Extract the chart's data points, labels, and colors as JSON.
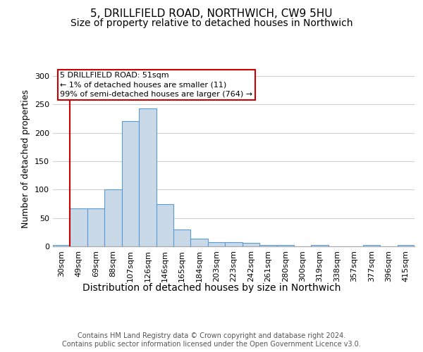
{
  "title1": "5, DRILLFIELD ROAD, NORTHWICH, CW9 5HU",
  "title2": "Size of property relative to detached houses in Northwich",
  "xlabel": "Distribution of detached houses by size in Northwich",
  "ylabel": "Number of detached properties",
  "footnote": "Contains HM Land Registry data © Crown copyright and database right 2024.\nContains public sector information licensed under the Open Government Licence v3.0.",
  "categories": [
    "30sqm",
    "49sqm",
    "69sqm",
    "88sqm",
    "107sqm",
    "126sqm",
    "146sqm",
    "165sqm",
    "184sqm",
    "203sqm",
    "223sqm",
    "242sqm",
    "261sqm",
    "280sqm",
    "300sqm",
    "319sqm",
    "338sqm",
    "357sqm",
    "377sqm",
    "396sqm",
    "415sqm"
  ],
  "values": [
    2,
    67,
    67,
    100,
    221,
    243,
    75,
    30,
    14,
    7,
    7,
    6,
    2,
    2,
    0,
    2,
    0,
    0,
    2,
    0,
    2
  ],
  "bar_color": "#c9d9e8",
  "bar_edge_color": "#5b9bd5",
  "annotation_box_text": "5 DRILLFIELD ROAD: 51sqm\n← 1% of detached houses are smaller (11)\n99% of semi-detached houses are larger (764) →",
  "annotation_box_color": "#ffffff",
  "annotation_box_edge_color": "#cc0000",
  "vline_color": "#cc0000",
  "ylim": [
    0,
    310
  ],
  "yticks": [
    0,
    50,
    100,
    150,
    200,
    250,
    300
  ],
  "background_color": "#ffffff",
  "grid_color": "#d0d0d0",
  "title1_fontsize": 11,
  "title2_fontsize": 10,
  "xlabel_fontsize": 10,
  "ylabel_fontsize": 9,
  "tick_fontsize": 8,
  "footnote_fontsize": 7,
  "annotation_fontsize": 8
}
